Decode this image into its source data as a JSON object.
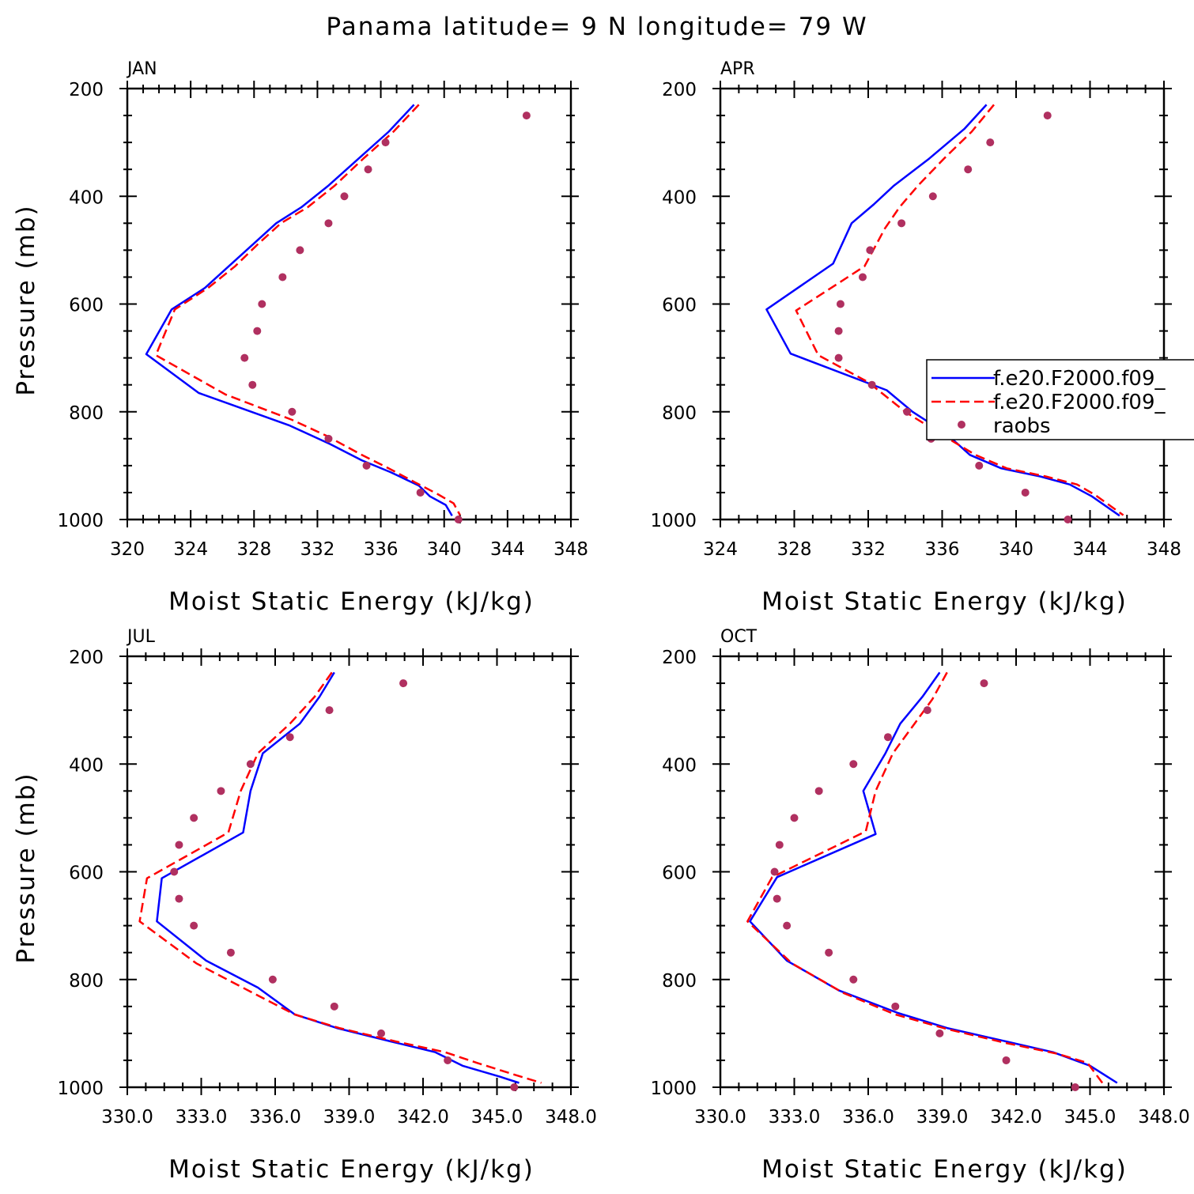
{
  "figure_title": "Panama  latitude= 9 N longitude= 79 W",
  "legend": {
    "entries": [
      {
        "label": "f.e20.F2000.f09_",
        "style": "solid",
        "color": "#0000ff"
      },
      {
        "label": "f.e20.F2000.f09_",
        "style": "dashed",
        "color": "#ff0000"
      },
      {
        "label": "raobs",
        "style": "dots",
        "color": "#b03060"
      }
    ]
  },
  "colors": {
    "series1": "#0000ff",
    "series2": "#ff0000",
    "raobs": "#b03060"
  },
  "chart_data": [
    {
      "type": "line",
      "panel_label": "JAN",
      "xlabel": "Moist Static Energy (kJ/kg)",
      "ylabel": "Pressure (mb)",
      "xlim": [
        320,
        348
      ],
      "ylim": [
        200,
        1000
      ],
      "xticks": [
        "320",
        "324",
        "328",
        "332",
        "336",
        "340",
        "344",
        "348"
      ],
      "xtick_values": [
        320,
        324,
        328,
        332,
        336,
        340,
        344,
        348
      ],
      "yticks": [
        "200",
        "400",
        "600",
        "800",
        "1000"
      ],
      "ytick_values": [
        200,
        400,
        600,
        800,
        1000
      ],
      "series": [
        {
          "style": "solid",
          "points": [
            [
              338.1,
              230
            ],
            [
              336.5,
              280
            ],
            [
              334.6,
              330
            ],
            [
              332.7,
              380
            ],
            [
              331.0,
              420
            ],
            [
              329.4,
              450
            ],
            [
              327.9,
              490
            ],
            [
              326.4,
              530
            ],
            [
              324.9,
              570
            ],
            [
              322.8,
              610
            ],
            [
              321.2,
              693
            ],
            [
              324.5,
              765
            ],
            [
              330.2,
              825
            ],
            [
              332.8,
              860
            ],
            [
              334.8,
              890
            ],
            [
              336.6,
              912
            ],
            [
              338.4,
              937
            ],
            [
              339.1,
              957
            ],
            [
              340.1,
              973
            ],
            [
              340.5,
              993
            ]
          ]
        },
        {
          "style": "dashed",
          "points": [
            [
              338.4,
              230
            ],
            [
              336.8,
              280
            ],
            [
              334.9,
              330
            ],
            [
              333.1,
              380
            ],
            [
              331.4,
              420
            ],
            [
              329.7,
              450
            ],
            [
              328.2,
              490
            ],
            [
              326.8,
              530
            ],
            [
              325.1,
              570
            ],
            [
              323.0,
              610
            ],
            [
              321.8,
              695
            ],
            [
              326.2,
              768
            ],
            [
              330.4,
              815
            ],
            [
              332.6,
              845
            ],
            [
              334.8,
              880
            ],
            [
              336.5,
              905
            ],
            [
              338.1,
              930
            ],
            [
              339.6,
              953
            ],
            [
              340.6,
              970
            ],
            [
              341.0,
              992
            ]
          ]
        },
        {
          "style": "dots",
          "points": [
            [
              345.2,
              250
            ],
            [
              336.3,
              300
            ],
            [
              335.2,
              350
            ],
            [
              333.7,
              400
            ],
            [
              332.7,
              450
            ],
            [
              330.9,
              500
            ],
            [
              329.8,
              550
            ],
            [
              328.5,
              600
            ],
            [
              328.2,
              650
            ],
            [
              327.4,
              700
            ],
            [
              327.9,
              750
            ],
            [
              330.4,
              800
            ],
            [
              332.7,
              850
            ],
            [
              335.1,
              900
            ],
            [
              338.5,
              950
            ],
            [
              340.9,
              1000
            ]
          ]
        }
      ]
    },
    {
      "type": "line",
      "panel_label": "APR",
      "xlabel": "Moist Static Energy (kJ/kg)",
      "ylabel": "",
      "xlim": [
        324,
        348
      ],
      "ylim": [
        200,
        1000
      ],
      "xticks": [
        "324",
        "328",
        "332",
        "336",
        "340",
        "344",
        "348"
      ],
      "xtick_values": [
        324,
        328,
        332,
        336,
        340,
        344,
        348
      ],
      "yticks": [
        "200",
        "400",
        "600",
        "800",
        "1000"
      ],
      "ytick_values": [
        200,
        400,
        600,
        800,
        1000
      ],
      "series": [
        {
          "style": "solid",
          "points": [
            [
              338.4,
              230
            ],
            [
              337.2,
              275
            ],
            [
              335.3,
              330
            ],
            [
              333.4,
              380
            ],
            [
              332.3,
              415
            ],
            [
              331.1,
              450
            ],
            [
              330.1,
              525
            ],
            [
              326.5,
              610
            ],
            [
              327.8,
              692
            ],
            [
              333.0,
              760
            ],
            [
              334.4,
              800
            ],
            [
              336.2,
              840
            ],
            [
              337.5,
              880
            ],
            [
              339.2,
              905
            ],
            [
              341.3,
              920
            ],
            [
              342.9,
              935
            ],
            [
              344.1,
              957
            ],
            [
              345.6,
              993
            ]
          ]
        },
        {
          "style": "dashed",
          "points": [
            [
              338.8,
              230
            ],
            [
              337.6,
              280
            ],
            [
              336.1,
              330
            ],
            [
              334.7,
              380
            ],
            [
              333.7,
              420
            ],
            [
              332.9,
              460
            ],
            [
              331.8,
              530
            ],
            [
              328.1,
              612
            ],
            [
              329.3,
              695
            ],
            [
              332.0,
              745
            ],
            [
              334.0,
              800
            ],
            [
              336.1,
              845
            ],
            [
              337.8,
              880
            ],
            [
              339.5,
              905
            ],
            [
              341.6,
              920
            ],
            [
              343.3,
              935
            ],
            [
              344.3,
              955
            ],
            [
              345.8,
              992
            ]
          ]
        },
        {
          "style": "dots",
          "points": [
            [
              341.7,
              250
            ],
            [
              338.6,
              300
            ],
            [
              337.4,
              350
            ],
            [
              335.5,
              400
            ],
            [
              333.8,
              450
            ],
            [
              332.1,
              500
            ],
            [
              331.7,
              550
            ],
            [
              330.5,
              600
            ],
            [
              330.4,
              650
            ],
            [
              330.4,
              700
            ],
            [
              332.2,
              750
            ],
            [
              334.1,
              800
            ],
            [
              335.4,
              850
            ],
            [
              338.0,
              900
            ],
            [
              340.5,
              950
            ],
            [
              342.8,
              1000
            ]
          ]
        }
      ]
    },
    {
      "type": "line",
      "panel_label": "JUL",
      "xlabel": "Moist Static Energy (kJ/kg)",
      "ylabel": "Pressure (mb)",
      "xlim": [
        330.0,
        348.0
      ],
      "ylim": [
        200,
        1000
      ],
      "xticks": [
        "330.0",
        "333.0",
        "336.0",
        "339.0",
        "342.0",
        "345.0",
        "348.0"
      ],
      "xtick_values": [
        330,
        333,
        336,
        339,
        342,
        345,
        348
      ],
      "yticks": [
        "200",
        "400",
        "600",
        "800",
        "1000"
      ],
      "ytick_values": [
        200,
        400,
        600,
        800,
        1000
      ],
      "series": [
        {
          "style": "solid",
          "points": [
            [
              338.4,
              230
            ],
            [
              337.8,
              275
            ],
            [
              337.0,
              325
            ],
            [
              335.5,
              380
            ],
            [
              335.0,
              450
            ],
            [
              334.7,
              527
            ],
            [
              331.4,
              612
            ],
            [
              331.2,
              692
            ],
            [
              333.2,
              765
            ],
            [
              335.3,
              815
            ],
            [
              336.8,
              865
            ],
            [
              338.5,
              890
            ],
            [
              340.7,
              915
            ],
            [
              342.5,
              935
            ],
            [
              343.6,
              960
            ],
            [
              345.1,
              980
            ],
            [
              345.9,
              992
            ]
          ]
        },
        {
          "style": "dashed",
          "points": [
            [
              338.3,
              230
            ],
            [
              337.6,
              275
            ],
            [
              336.6,
              325
            ],
            [
              335.3,
              380
            ],
            [
              334.6,
              450
            ],
            [
              334.1,
              527
            ],
            [
              330.8,
              612
            ],
            [
              330.5,
              692
            ],
            [
              332.8,
              770
            ],
            [
              335.1,
              825
            ],
            [
              336.8,
              865
            ],
            [
              338.6,
              890
            ],
            [
              340.9,
              915
            ],
            [
              342.9,
              935
            ],
            [
              344.2,
              955
            ],
            [
              345.6,
              975
            ],
            [
              346.8,
              992
            ]
          ]
        },
        {
          "style": "dots",
          "points": [
            [
              341.2,
              250
            ],
            [
              338.2,
              300
            ],
            [
              336.6,
              350
            ],
            [
              335.0,
              400
            ],
            [
              333.8,
              450
            ],
            [
              332.7,
              500
            ],
            [
              332.1,
              550
            ],
            [
              331.9,
              600
            ],
            [
              332.1,
              650
            ],
            [
              332.7,
              700
            ],
            [
              334.2,
              750
            ],
            [
              335.9,
              800
            ],
            [
              338.4,
              850
            ],
            [
              340.3,
              900
            ],
            [
              343.0,
              950
            ],
            [
              345.7,
              1000
            ]
          ]
        }
      ]
    },
    {
      "type": "line",
      "panel_label": "OCT",
      "xlabel": "Moist Static Energy (kJ/kg)",
      "ylabel": "",
      "xlim": [
        330.0,
        348.0
      ],
      "ylim": [
        200,
        1000
      ],
      "xticks": [
        "330.0",
        "333.0",
        "336.0",
        "339.0",
        "342.0",
        "345.0",
        "348.0"
      ],
      "xtick_values": [
        330,
        333,
        336,
        339,
        342,
        345,
        348
      ],
      "yticks": [
        "200",
        "400",
        "600",
        "800",
        "1000"
      ],
      "ytick_values": [
        200,
        400,
        600,
        800,
        1000
      ],
      "series": [
        {
          "style": "solid",
          "points": [
            [
              338.9,
              230
            ],
            [
              338.2,
              275
            ],
            [
              337.3,
              325
            ],
            [
              336.7,
              380
            ],
            [
              335.8,
              450
            ],
            [
              336.3,
              530
            ],
            [
              332.3,
              610
            ],
            [
              331.2,
              692
            ],
            [
              332.7,
              765
            ],
            [
              334.8,
              820
            ],
            [
              337.2,
              862
            ],
            [
              339.2,
              890
            ],
            [
              341.6,
              915
            ],
            [
              343.5,
              935
            ],
            [
              345.0,
              960
            ],
            [
              346.1,
              992
            ]
          ]
        },
        {
          "style": "dashed",
          "points": [
            [
              339.2,
              230
            ],
            [
              338.6,
              280
            ],
            [
              337.8,
              330
            ],
            [
              337.0,
              380
            ],
            [
              336.3,
              450
            ],
            [
              335.9,
              525
            ],
            [
              332.1,
              610
            ],
            [
              331.1,
              692
            ],
            [
              332.9,
              770
            ],
            [
              335.0,
              825
            ],
            [
              337.1,
              865
            ],
            [
              339.2,
              892
            ],
            [
              341.6,
              918
            ],
            [
              343.7,
              938
            ],
            [
              344.9,
              955
            ],
            [
              345.5,
              992
            ]
          ]
        },
        {
          "style": "dots",
          "points": [
            [
              340.7,
              250
            ],
            [
              338.4,
              300
            ],
            [
              336.8,
              350
            ],
            [
              335.4,
              400
            ],
            [
              334.0,
              450
            ],
            [
              333.0,
              500
            ],
            [
              332.4,
              550
            ],
            [
              332.2,
              600
            ],
            [
              332.3,
              650
            ],
            [
              332.7,
              700
            ],
            [
              334.4,
              750
            ],
            [
              335.4,
              800
            ],
            [
              337.1,
              850
            ],
            [
              338.9,
              900
            ],
            [
              341.6,
              950
            ],
            [
              344.4,
              1000
            ]
          ]
        }
      ]
    }
  ]
}
